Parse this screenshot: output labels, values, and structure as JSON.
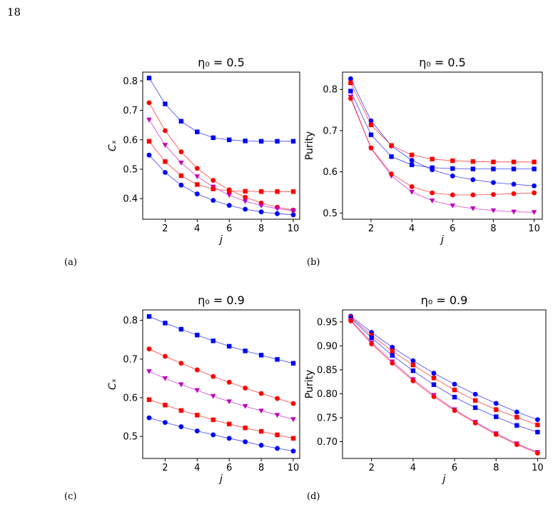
{
  "page_number": "18",
  "chart_data": [
    {
      "id": "a",
      "type": "line",
      "caption": "(a)",
      "title": "η₀ = 0.5",
      "xlabel": "j",
      "ylabel": "Cₓ",
      "xlim": [
        0.6,
        10.4
      ],
      "ylim": [
        0.33,
        0.83
      ],
      "xticks": [
        2,
        4,
        6,
        8,
        10
      ],
      "yticks": [
        0.4,
        0.5,
        0.6,
        0.7,
        0.8
      ],
      "grid": false,
      "x": [
        1,
        2,
        3,
        4,
        5,
        6,
        7,
        8,
        9,
        10
      ],
      "series": [
        {
          "color": "#0000ff",
          "marker": "square",
          "values": [
            0.81,
            0.722,
            0.663,
            0.627,
            0.607,
            0.6,
            0.596,
            0.595,
            0.595,
            0.595
          ]
        },
        {
          "color": "#ff0000",
          "marker": "circle",
          "values": [
            0.726,
            0.631,
            0.559,
            0.503,
            0.462,
            0.43,
            0.405,
            0.385,
            0.371,
            0.361
          ]
        },
        {
          "color": "#bf00bf",
          "marker": "triangle-down",
          "values": [
            0.668,
            0.582,
            0.522,
            0.475,
            0.44,
            0.412,
            0.391,
            0.376,
            0.366,
            0.359
          ]
        },
        {
          "color": "#ff0000",
          "marker": "square",
          "values": [
            0.595,
            0.526,
            0.478,
            0.448,
            0.433,
            0.426,
            0.425,
            0.424,
            0.424,
            0.424
          ]
        },
        {
          "color": "#0000ff",
          "marker": "circle",
          "values": [
            0.548,
            0.489,
            0.446,
            0.416,
            0.394,
            0.377,
            0.364,
            0.355,
            0.349,
            0.345
          ]
        }
      ]
    },
    {
      "id": "b",
      "type": "line",
      "caption": "(b)",
      "title": "η₀ = 0.5",
      "xlabel": "j",
      "ylabel": "Purity",
      "xlim": [
        0.6,
        10.4
      ],
      "ylim": [
        0.485,
        0.842
      ],
      "xticks": [
        2,
        4,
        6,
        8,
        10
      ],
      "yticks": [
        0.5,
        0.6,
        0.7,
        0.8
      ],
      "grid": false,
      "x": [
        1,
        2,
        3,
        4,
        5,
        6,
        7,
        8,
        9,
        10
      ],
      "series": [
        {
          "color": "#0000ff",
          "marker": "circle",
          "values": [
            0.826,
            0.724,
            0.663,
            0.628,
            0.605,
            0.59,
            0.581,
            0.574,
            0.57,
            0.566
          ]
        },
        {
          "color": "#ff0000",
          "marker": "square",
          "values": [
            0.816,
            0.714,
            0.664,
            0.641,
            0.631,
            0.627,
            0.625,
            0.624,
            0.624,
            0.624
          ]
        },
        {
          "color": "#0000ff",
          "marker": "square",
          "values": [
            0.796,
            0.69,
            0.637,
            0.617,
            0.61,
            0.608,
            0.607,
            0.607,
            0.607,
            0.607
          ]
        },
        {
          "color": "#bf00bf",
          "marker": "triangle-down",
          "values": [
            0.782,
            0.657,
            0.59,
            0.551,
            0.53,
            0.518,
            0.511,
            0.506,
            0.503,
            0.502
          ]
        },
        {
          "color": "#ff0000",
          "marker": "circle",
          "values": [
            0.778,
            0.658,
            0.595,
            0.564,
            0.549,
            0.544,
            0.544,
            0.545,
            0.547,
            0.549
          ]
        }
      ]
    },
    {
      "id": "c",
      "type": "line",
      "caption": "(c)",
      "title": "η₀ = 0.9",
      "xlabel": "j",
      "ylabel": "Cₓ",
      "xlim": [
        0.6,
        10.4
      ],
      "ylim": [
        0.443,
        0.827
      ],
      "xticks": [
        2,
        4,
        6,
        8,
        10
      ],
      "yticks": [
        0.5,
        0.6,
        0.7,
        0.8
      ],
      "grid": false,
      "x": [
        1,
        2,
        3,
        4,
        5,
        6,
        7,
        8,
        9,
        10
      ],
      "series": [
        {
          "color": "#0000ff",
          "marker": "square",
          "values": [
            0.81,
            0.793,
            0.777,
            0.762,
            0.747,
            0.733,
            0.721,
            0.71,
            0.699,
            0.689
          ]
        },
        {
          "color": "#ff0000",
          "marker": "circle",
          "values": [
            0.726,
            0.707,
            0.689,
            0.672,
            0.655,
            0.64,
            0.625,
            0.611,
            0.598,
            0.585
          ]
        },
        {
          "color": "#bf00bf",
          "marker": "triangle-down",
          "values": [
            0.668,
            0.65,
            0.634,
            0.619,
            0.604,
            0.59,
            0.578,
            0.566,
            0.555,
            0.544
          ]
        },
        {
          "color": "#ff0000",
          "marker": "square",
          "values": [
            0.595,
            0.581,
            0.567,
            0.555,
            0.543,
            0.532,
            0.522,
            0.513,
            0.504,
            0.495
          ]
        },
        {
          "color": "#0000ff",
          "marker": "circle",
          "values": [
            0.548,
            0.536,
            0.525,
            0.514,
            0.504,
            0.495,
            0.486,
            0.477,
            0.469,
            0.462
          ]
        }
      ]
    },
    {
      "id": "d",
      "type": "line",
      "caption": "(d)",
      "title": "η₀ = 0.9",
      "xlabel": "j",
      "ylabel": "Purity",
      "xlim": [
        0.6,
        10.4
      ],
      "ylim": [
        0.665,
        0.975
      ],
      "xticks": [
        2,
        4,
        6,
        8,
        10
      ],
      "yticks": [
        0.7,
        0.75,
        0.8,
        0.85,
        0.9,
        0.95
      ],
      "ytick_labels": [
        "0.70",
        "0.75",
        "0.80",
        "0.85",
        "0.90",
        "0.95"
      ],
      "grid": false,
      "x": [
        1,
        2,
        3,
        4,
        5,
        6,
        7,
        8,
        9,
        10
      ],
      "series": [
        {
          "color": "#0000ff",
          "marker": "circle",
          "values": [
            0.962,
            0.928,
            0.897,
            0.869,
            0.843,
            0.82,
            0.799,
            0.78,
            0.762,
            0.746
          ]
        },
        {
          "color": "#ff0000",
          "marker": "square",
          "values": [
            0.96,
            0.922,
            0.889,
            0.86,
            0.833,
            0.808,
            0.786,
            0.767,
            0.751,
            0.735
          ]
        },
        {
          "color": "#0000ff",
          "marker": "square",
          "values": [
            0.958,
            0.917,
            0.88,
            0.848,
            0.819,
            0.793,
            0.771,
            0.752,
            0.734,
            0.72
          ]
        },
        {
          "color": "#bf00bf",
          "marker": "triangle-down",
          "values": [
            0.954,
            0.907,
            0.867,
            0.83,
            0.797,
            0.767,
            0.741,
            0.717,
            0.696,
            0.678
          ]
        },
        {
          "color": "#ff0000",
          "marker": "circle",
          "values": [
            0.952,
            0.904,
            0.864,
            0.827,
            0.794,
            0.765,
            0.739,
            0.715,
            0.694,
            0.676
          ]
        }
      ]
    }
  ]
}
